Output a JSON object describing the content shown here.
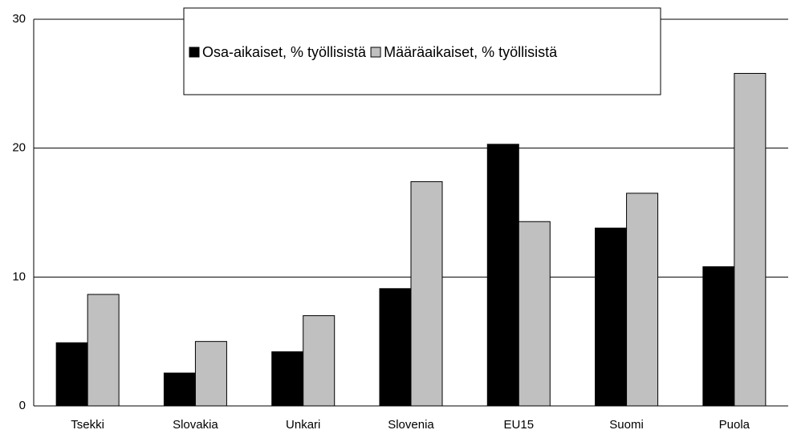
{
  "chart_data": {
    "type": "bar",
    "categories": [
      "Tsekki",
      "Slovakia",
      "Unkari",
      "Slovenia",
      "EU15",
      "Suomi",
      "Puola"
    ],
    "series": [
      {
        "name": "Osa-aikaiset, % työllisistä",
        "color": "#000000",
        "values": [
          4.9,
          2.55,
          4.2,
          9.1,
          20.3,
          13.8,
          10.8
        ]
      },
      {
        "name": "Määräaikaiset, % työllisistä",
        "color": "#c0c0c0",
        "values": [
          8.65,
          5.0,
          7.0,
          17.4,
          14.3,
          16.5,
          25.8
        ]
      }
    ],
    "ylim": [
      0,
      30
    ],
    "yticks": [
      0,
      10,
      20,
      30
    ],
    "grid": true
  }
}
